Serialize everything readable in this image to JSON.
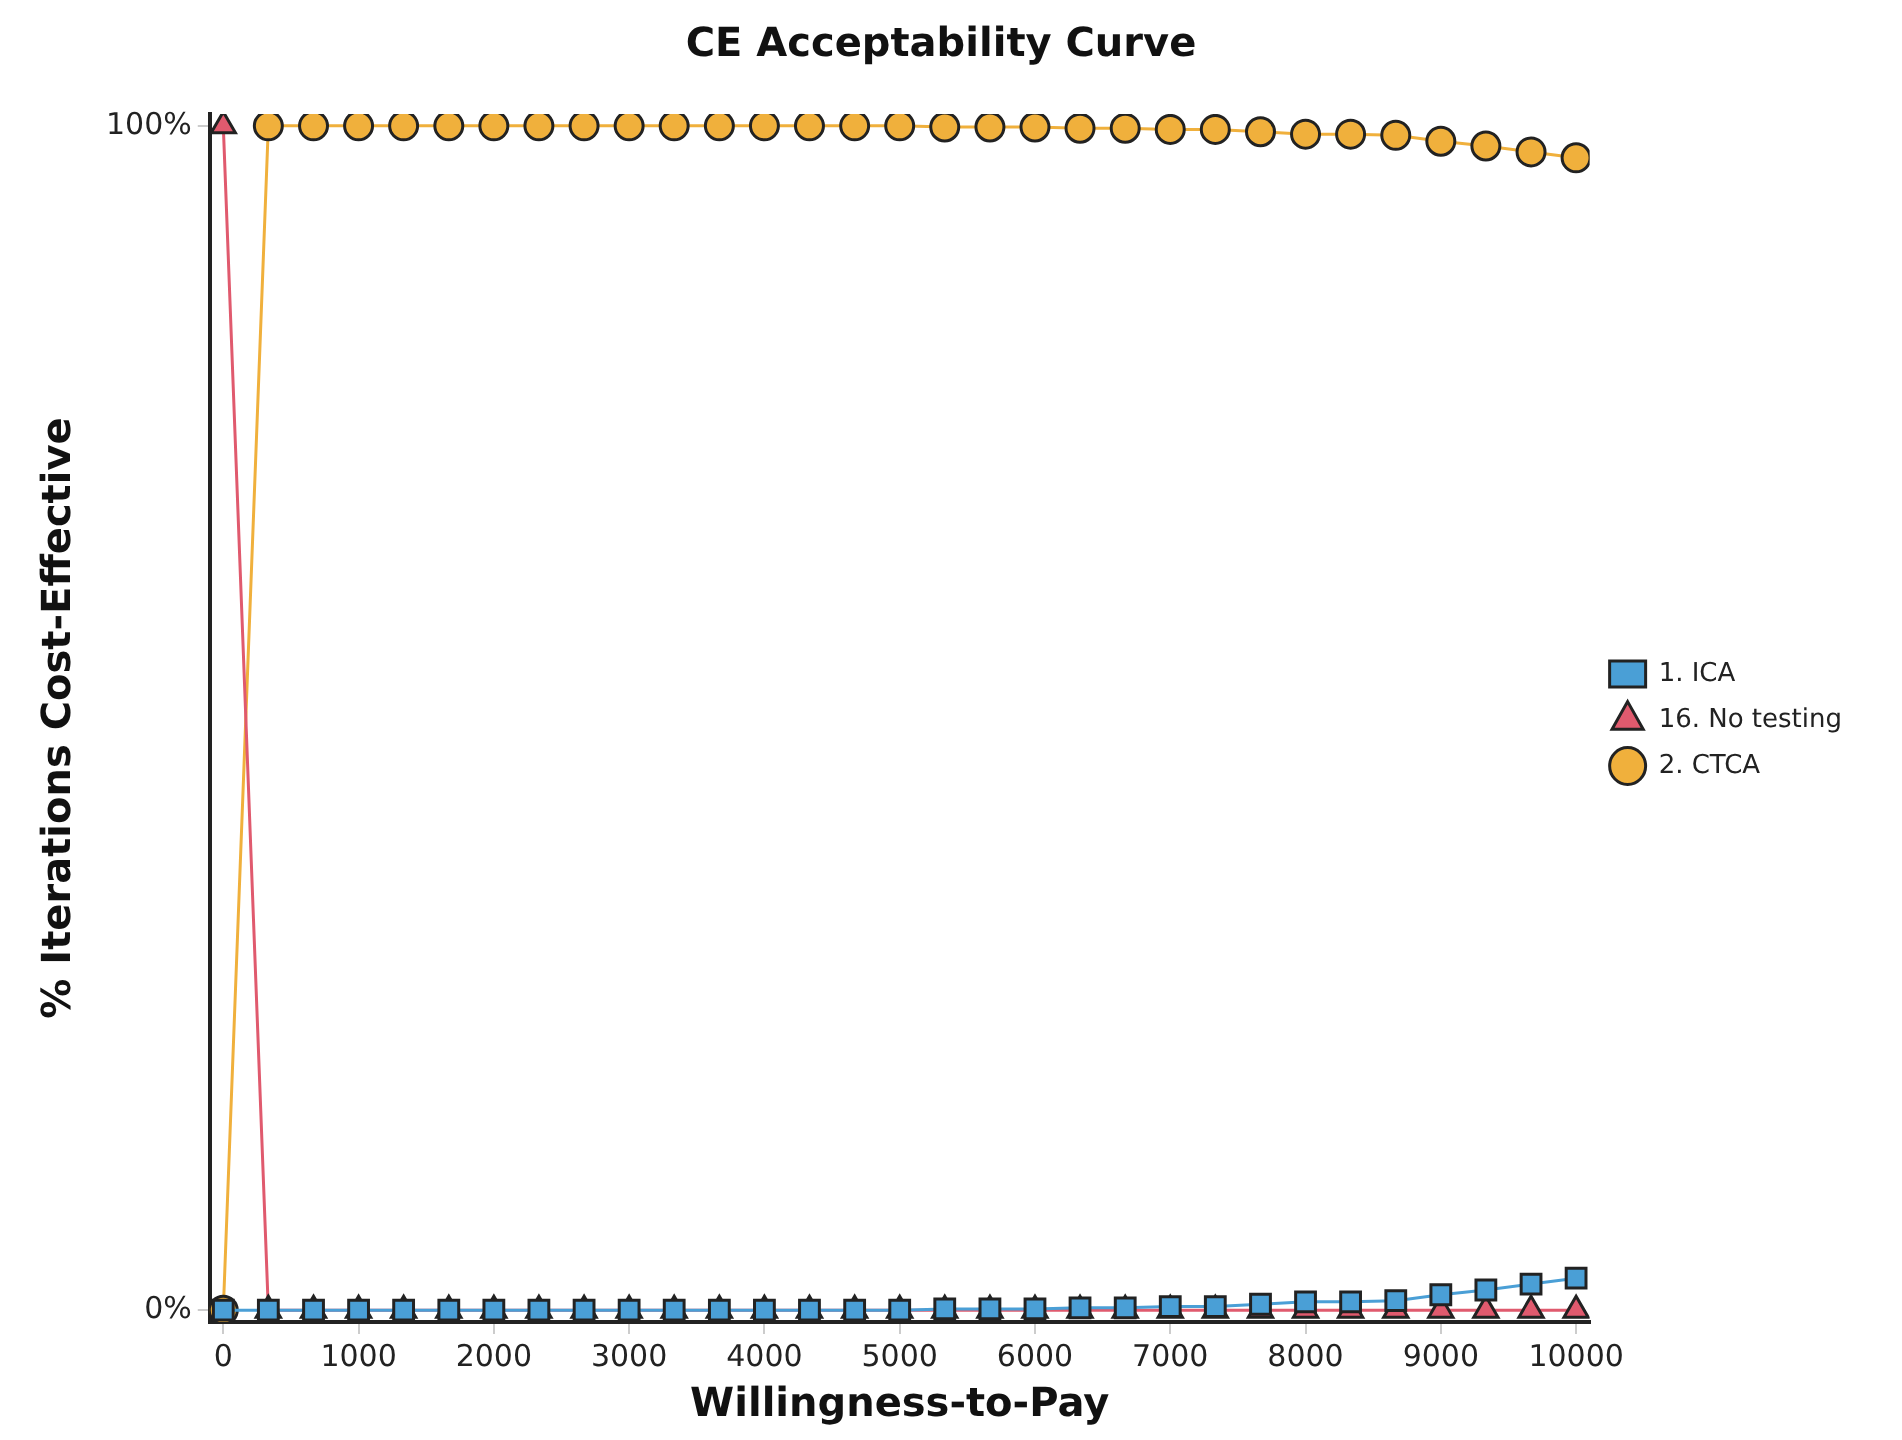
{
  "chart_data": {
    "type": "line",
    "title": "CE Acceptability Curve",
    "xlabel": "Willingness-to-Pay",
    "ylabel": "% Iterations Cost-Effective",
    "x": [
      0,
      333,
      667,
      1000,
      1333,
      1667,
      2000,
      2333,
      2667,
      3000,
      3333,
      3667,
      4000,
      4333,
      4667,
      5000,
      5333,
      5667,
      6000,
      6333,
      6667,
      7000,
      7333,
      7667,
      8000,
      8333,
      8667,
      9000,
      9333,
      9667,
      10000
    ],
    "series": [
      {
        "name": "1. ICA",
        "color": "#4a9fd6",
        "marker": "square",
        "values": [
          0,
          0,
          0,
          0,
          0,
          0,
          0,
          0,
          0,
          0,
          0,
          0,
          0,
          0,
          0,
          0,
          0.1,
          0.1,
          0.1,
          0.2,
          0.2,
          0.3,
          0.3,
          0.5,
          0.7,
          0.7,
          0.8,
          1.3,
          1.7,
          2.2,
          2.7
        ]
      },
      {
        "name": "16. No testing",
        "color": "#e05a6e",
        "marker": "triangle",
        "values": [
          100,
          0,
          0,
          0,
          0,
          0,
          0,
          0,
          0,
          0,
          0,
          0,
          0,
          0,
          0,
          0,
          0,
          0,
          0,
          0,
          0,
          0,
          0,
          0,
          0,
          0,
          0,
          0,
          0,
          0,
          0
        ]
      },
      {
        "name": "2. CTCA",
        "color": "#f0b03c",
        "marker": "circle",
        "values": [
          0,
          100,
          100,
          100,
          100,
          100,
          100,
          100,
          100,
          100,
          100,
          100,
          100,
          100,
          100,
          100,
          99.9,
          99.9,
          99.9,
          99.8,
          99.8,
          99.7,
          99.7,
          99.5,
          99.3,
          99.3,
          99.2,
          98.7,
          98.3,
          97.8,
          97.3
        ]
      }
    ],
    "xlim": [
      -100,
      10100
    ],
    "xticks": [
      0,
      1000,
      2000,
      3000,
      4000,
      5000,
      6000,
      7000,
      8000,
      9000,
      10000
    ],
    "ylim": [
      -1,
      101
    ],
    "yticks": [
      {
        "value": 0,
        "label": "0%"
      },
      {
        "value": 100,
        "label": "100%"
      }
    ],
    "grid": false,
    "legend": "right"
  }
}
